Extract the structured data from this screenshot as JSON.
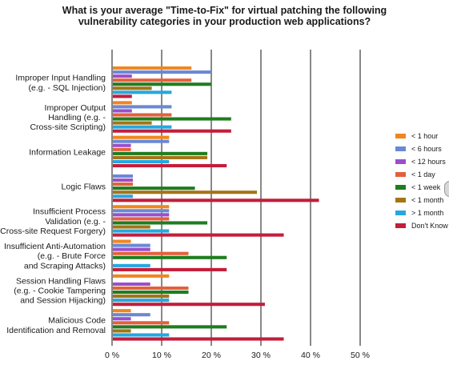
{
  "title_lines": [
    "What is your average \"Time-to-Fix\" for virtual patching the following",
    "vulnerability categories in your production web applications?"
  ],
  "colors": {
    "< 1 hour": "#f0861e",
    "< 6 hours": "#6b88d4",
    "< 12 hours": "#9a4fc9",
    "< 1 day": "#e4603d",
    "< 1 week": "#1f7d1f",
    "< 1 month": "#a47415",
    "> 1 month": "#25a8e0",
    "Don't Know": "#c41d3a"
  },
  "chart_data": {
    "type": "bar",
    "orientation": "horizontal",
    "title": "What is your average \"Time-to-Fix\" for virtual patching the following vulnerability categories in your production web applications?",
    "categories": [
      [
        "Improper Input Handling",
        "(e.g. - SQL Injection)"
      ],
      [
        "Improper Output",
        "Handling (e.g. -",
        "Cross-site Scripting)"
      ],
      [
        "Information Leakage"
      ],
      [
        "Logic Flaws"
      ],
      [
        "Insufficient Process",
        "Validation (e.g. -",
        "Cross-site Request Forgery)"
      ],
      [
        "Insufficient Anti-Automation",
        "(e.g. - Brute Force",
        "and Scraping Attacks)"
      ],
      [
        "Session Handling Flaws",
        "(e.g. - Cookie Tampering",
        "and Session Hijacking)"
      ],
      [
        "Malicious Code",
        "Identification and Removal"
      ]
    ],
    "series": [
      {
        "name": "< 1 hour",
        "values": [
          16,
          4,
          11.5,
          0,
          11.5,
          3.8,
          11.5,
          3.8
        ]
      },
      {
        "name": "< 6 hours",
        "values": [
          20,
          12,
          11.5,
          4.2,
          11.5,
          7.7,
          0,
          7.7
        ]
      },
      {
        "name": "< 12 hours",
        "values": [
          4,
          4,
          3.8,
          4.2,
          11.5,
          7.7,
          7.7,
          3.8
        ]
      },
      {
        "name": "< 1 day",
        "values": [
          16,
          12,
          3.8,
          4.2,
          11.5,
          15.4,
          15.4,
          11.5
        ]
      },
      {
        "name": "< 1 week",
        "values": [
          20,
          24,
          19.2,
          16.7,
          19.2,
          23.1,
          15.4,
          23.1
        ]
      },
      {
        "name": "< 1 month",
        "values": [
          8,
          8,
          19.2,
          29.2,
          7.7,
          0,
          11.5,
          3.8
        ]
      },
      {
        "name": "> 1 month",
        "values": [
          12,
          12,
          11.5,
          4.2,
          11.5,
          7.7,
          11.5,
          11.5
        ]
      },
      {
        "name": "Don't Know",
        "values": [
          4,
          24,
          23.1,
          41.7,
          34.6,
          23.1,
          30.8,
          34.6
        ]
      }
    ],
    "xlim": [
      0,
      50
    ],
    "xticks": [
      "0 %",
      "10 %",
      "20 %",
      "30 %",
      "40 %",
      "50 %"
    ],
    "grid": "vertical",
    "legend": "right"
  }
}
